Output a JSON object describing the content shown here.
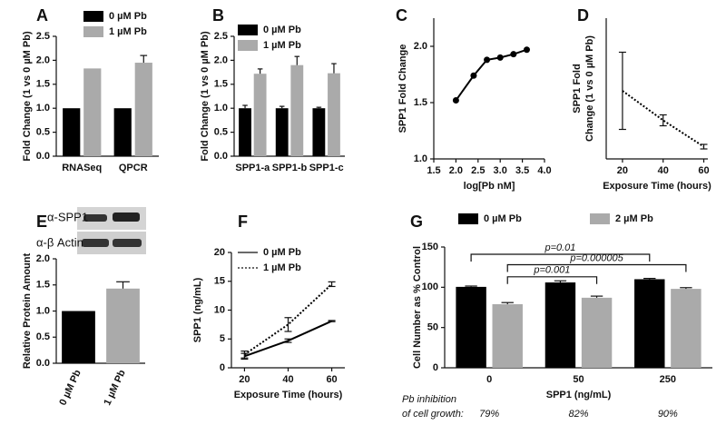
{
  "chart_data": [
    {
      "type": "bar",
      "panel_label": "A",
      "y_label": "Fold Change (1 vs 0 µM Pb)",
      "categories": [
        "RNASeq",
        "QPCR"
      ],
      "series": [
        {
          "name": "0 µM Pb",
          "color": "#000000",
          "values": [
            1.0,
            1.0
          ],
          "errors": [
            null,
            null
          ]
        },
        {
          "name": "1 µM Pb",
          "color": "#aaaaaa",
          "values": [
            1.83,
            1.95
          ],
          "errors": [
            null,
            0.15
          ]
        }
      ],
      "ylim": [
        0,
        2.5
      ],
      "yticks": [
        {
          "value": 0,
          "label": "0.0"
        },
        0.5,
        {
          "value": 1,
          "label": "1.0"
        },
        1.5,
        {
          "value": 2,
          "label": "2.0"
        },
        2.5
      ]
    },
    {
      "type": "bar",
      "panel_label": "B",
      "y_label": "Fold Change (1 vs 0 µM Pb)",
      "categories": [
        "SPP1-a",
        "SPP1-b",
        "SPP1-c"
      ],
      "series": [
        {
          "name": "0 µM Pb",
          "color": "#000000",
          "values": [
            1.0,
            1.0,
            1.0
          ],
          "errors": [
            0.06,
            0.04,
            0.02
          ]
        },
        {
          "name": "1 µM Pb",
          "color": "#aaaaaa",
          "values": [
            1.72,
            1.9,
            1.73
          ],
          "errors": [
            0.1,
            0.18,
            0.2
          ]
        }
      ],
      "ylim": [
        0,
        2.5
      ],
      "yticks": [
        {
          "value": 0,
          "label": "0.0"
        },
        0.5,
        {
          "value": 1,
          "label": "1.0"
        },
        1.5,
        {
          "value": 2,
          "label": "2.0"
        },
        2.5
      ]
    },
    {
      "type": "line",
      "panel_label": "C",
      "x_label": "log[Pb nM]",
      "y_label": "SPP1 Fold Change",
      "x": [
        2.0,
        2.4,
        2.7,
        3.0,
        3.3,
        3.6
      ],
      "series": [
        {
          "color": "#000000",
          "marker": true,
          "values": [
            1.52,
            1.74,
            1.88,
            1.9,
            1.93,
            1.97
          ]
        }
      ],
      "xlim": [
        1.5,
        4.0
      ],
      "xticks": [
        1.5,
        {
          "value": 2,
          "label": "2.0"
        },
        2.5,
        {
          "value": 3,
          "label": "3.0"
        },
        3.5,
        {
          "value": 4,
          "label": "4.0"
        }
      ],
      "ylim": [
        1.0,
        2.25
      ],
      "yticks": [
        {
          "value": 1,
          "label": "1.0"
        },
        1.5,
        {
          "value": 2,
          "label": "2.0"
        }
      ]
    },
    {
      "type": "line",
      "panel_label": "D",
      "x_label": "Exposure Time (hours)",
      "y_label": [
        "SPP1 Fold",
        "Change (1 vs 0 µM Pb)"
      ],
      "x": [
        20,
        40,
        60
      ],
      "series": [
        {
          "color": "#000000",
          "dash": true,
          "values": [
            2.4,
            1.75,
            1.17
          ],
          "errors": [
            0.85,
            0.12,
            0.05
          ]
        }
      ],
      "xlim": [
        12,
        62
      ],
      "xticks": [
        20,
        40,
        60
      ],
      "ylim": [
        0.9,
        4.0
      ]
    },
    {
      "type": "bar",
      "panel_label": "E",
      "blot_labels": [
        "α-SPP1",
        "α-β Actin"
      ],
      "y_label": "Relative Protein Amount",
      "categories": [
        "0 µM Pb",
        "1 µM Pb"
      ],
      "values": [
        1.0,
        1.43
      ],
      "errors": [
        null,
        0.13
      ],
      "colors": [
        "#000000",
        "#aaaaaa"
      ],
      "ylim": [
        0,
        2.0
      ],
      "yticks": [
        {
          "value": 0,
          "label": "0.0"
        },
        0.5,
        {
          "value": 1,
          "label": "1.0"
        },
        1.5,
        {
          "value": 2,
          "label": "2.0"
        }
      ]
    },
    {
      "type": "line",
      "panel_label": "F",
      "x_label": "Exposure Time (hours)",
      "y_label": "SPP1 (ng/mL)",
      "x": [
        20,
        40,
        60
      ],
      "series": [
        {
          "name": "0 µM Pb",
          "color": "#000000",
          "dash": false,
          "values": [
            2.0,
            4.7,
            8.1
          ],
          "errors": [
            0.5,
            0.3,
            0.1
          ]
        },
        {
          "name": "1 µM Pb",
          "color": "#000000",
          "dash": true,
          "values": [
            2.3,
            7.5,
            14.5
          ],
          "errors": [
            0.6,
            1.2,
            0.4
          ]
        }
      ],
      "xlim": [
        14,
        66
      ],
      "xticks": [
        20,
        40,
        60
      ],
      "ylim": [
        0,
        20
      ],
      "yticks": [
        0,
        5,
        10,
        15,
        20
      ]
    },
    {
      "type": "bar",
      "panel_label": "G",
      "x_label": "SPP1 (ng/mL)",
      "y_label": "Cell Number as % Control",
      "categories": [
        "0",
        "50",
        "250"
      ],
      "series": [
        {
          "name": "0 µM Pb",
          "color": "#000000",
          "values": [
            100.5,
            106,
            110
          ],
          "errors": [
            1,
            2,
            1
          ]
        },
        {
          "name": "2 µM Pb",
          "color": "#aaaaaa",
          "values": [
            79,
            87,
            98
          ],
          "errors": [
            2,
            2,
            1.5
          ]
        }
      ],
      "ylim": [
        0,
        150
      ],
      "yticks": [
        0,
        50,
        100,
        150
      ],
      "annotations": [
        {
          "text": "p=0.01",
          "categories": [
            "0",
            "250"
          ],
          "series": [
            "0 µM Pb",
            "0 µM Pb"
          ],
          "y": 141
        },
        {
          "text": "p=0.000005",
          "categories": [
            "0",
            "250"
          ],
          "series": [
            "2 µM Pb",
            "2 µM Pb"
          ],
          "y": 128
        },
        {
          "text": "p=0.001",
          "categories": [
            "0",
            "50"
          ],
          "series": [
            "2 µM Pb",
            "2 µM Pb"
          ],
          "y": 113
        }
      ],
      "inhibition": {
        "label": [
          "Pb inhibition",
          "of cell growth:"
        ],
        "values": [
          79,
          82,
          90
        ],
        "value_labels": [
          "79%",
          "82%",
          "90%"
        ]
      }
    }
  ]
}
